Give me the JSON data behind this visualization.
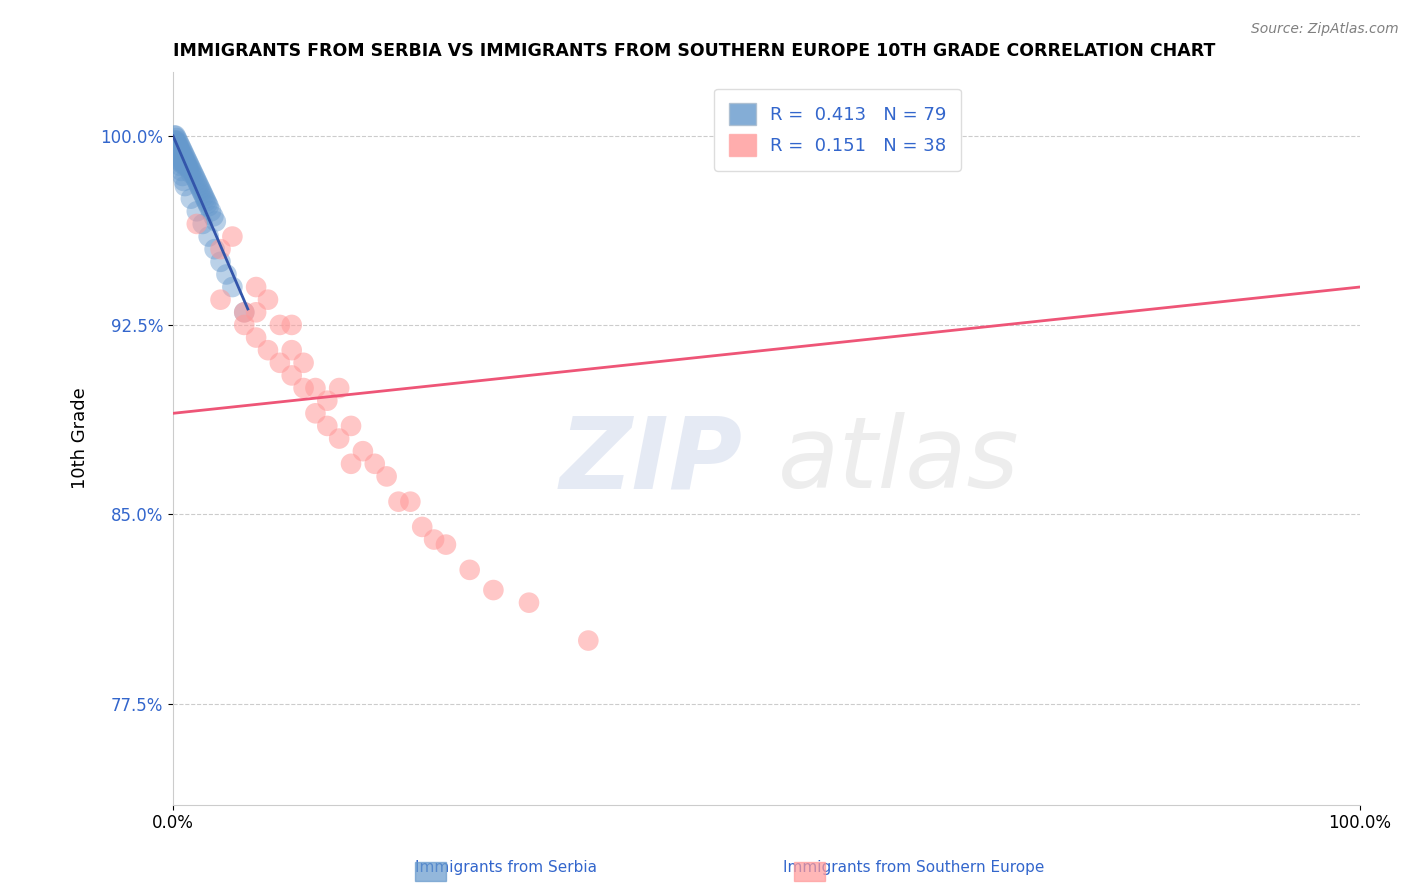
{
  "title": "IMMIGRANTS FROM SERBIA VS IMMIGRANTS FROM SOUTHERN EUROPE 10TH GRADE CORRELATION CHART",
  "source": "Source: ZipAtlas.com",
  "ylabel": "10th Grade",
  "ytick_labels": [
    "77.5%",
    "85.0%",
    "92.5%",
    "100.0%"
  ],
  "ytick_values": [
    0.775,
    0.85,
    0.925,
    1.0
  ],
  "xlim": [
    0.0,
    1.0
  ],
  "ylim": [
    0.735,
    1.025
  ],
  "legend1_label": "R =  0.413   N = 79",
  "legend2_label": "R =  0.151   N = 38",
  "color_blue": "#6699CC",
  "color_pink": "#FF9999",
  "color_blue_line": "#3355AA",
  "color_pink_line": "#EE5577",
  "color_text_blue": "#3366CC",
  "watermark_zip": "ZIP",
  "watermark_atlas": "atlas",
  "serbia_x": [
    0.001,
    0.002,
    0.002,
    0.002,
    0.003,
    0.003,
    0.003,
    0.003,
    0.004,
    0.004,
    0.004,
    0.004,
    0.005,
    0.005,
    0.005,
    0.005,
    0.006,
    0.006,
    0.006,
    0.006,
    0.007,
    0.007,
    0.007,
    0.007,
    0.008,
    0.008,
    0.008,
    0.009,
    0.009,
    0.009,
    0.01,
    0.01,
    0.01,
    0.011,
    0.011,
    0.012,
    0.012,
    0.013,
    0.013,
    0.014,
    0.015,
    0.015,
    0.016,
    0.017,
    0.018,
    0.019,
    0.02,
    0.021,
    0.022,
    0.023,
    0.024,
    0.025,
    0.026,
    0.027,
    0.028,
    0.029,
    0.03,
    0.032,
    0.034,
    0.036,
    0.001,
    0.002,
    0.003,
    0.004,
    0.005,
    0.006,
    0.007,
    0.008,
    0.009,
    0.01,
    0.015,
    0.02,
    0.025,
    0.03,
    0.035,
    0.04,
    0.045,
    0.05,
    0.06
  ],
  "serbia_y": [
    1.0,
    1.0,
    0.998,
    0.997,
    0.999,
    0.997,
    0.996,
    0.995,
    0.998,
    0.996,
    0.994,
    0.993,
    0.997,
    0.995,
    0.993,
    0.992,
    0.996,
    0.994,
    0.992,
    0.99,
    0.995,
    0.993,
    0.991,
    0.989,
    0.994,
    0.992,
    0.99,
    0.993,
    0.991,
    0.989,
    0.992,
    0.99,
    0.988,
    0.991,
    0.989,
    0.99,
    0.988,
    0.989,
    0.987,
    0.988,
    0.987,
    0.985,
    0.986,
    0.985,
    0.984,
    0.983,
    0.982,
    0.981,
    0.98,
    0.979,
    0.978,
    0.977,
    0.976,
    0.975,
    0.974,
    0.973,
    0.972,
    0.97,
    0.968,
    0.966,
    0.998,
    0.996,
    0.994,
    0.992,
    0.99,
    0.988,
    0.986,
    0.984,
    0.982,
    0.98,
    0.975,
    0.97,
    0.965,
    0.96,
    0.955,
    0.95,
    0.945,
    0.94,
    0.93
  ],
  "southern_x": [
    0.02,
    0.04,
    0.04,
    0.05,
    0.06,
    0.06,
    0.07,
    0.07,
    0.07,
    0.08,
    0.08,
    0.09,
    0.09,
    0.1,
    0.1,
    0.1,
    0.11,
    0.11,
    0.12,
    0.12,
    0.13,
    0.13,
    0.14,
    0.14,
    0.15,
    0.15,
    0.16,
    0.17,
    0.18,
    0.19,
    0.2,
    0.21,
    0.22,
    0.23,
    0.25,
    0.27,
    0.3,
    0.35
  ],
  "southern_y": [
    0.965,
    0.955,
    0.935,
    0.96,
    0.93,
    0.925,
    0.94,
    0.93,
    0.92,
    0.935,
    0.915,
    0.925,
    0.91,
    0.925,
    0.915,
    0.905,
    0.91,
    0.9,
    0.9,
    0.89,
    0.895,
    0.885,
    0.9,
    0.88,
    0.885,
    0.87,
    0.875,
    0.87,
    0.865,
    0.855,
    0.855,
    0.845,
    0.84,
    0.838,
    0.828,
    0.82,
    0.815,
    0.8
  ],
  "southern_trend_x0": 0.0,
  "southern_trend_y0": 0.89,
  "southern_trend_x1": 1.0,
  "southern_trend_y1": 0.94
}
